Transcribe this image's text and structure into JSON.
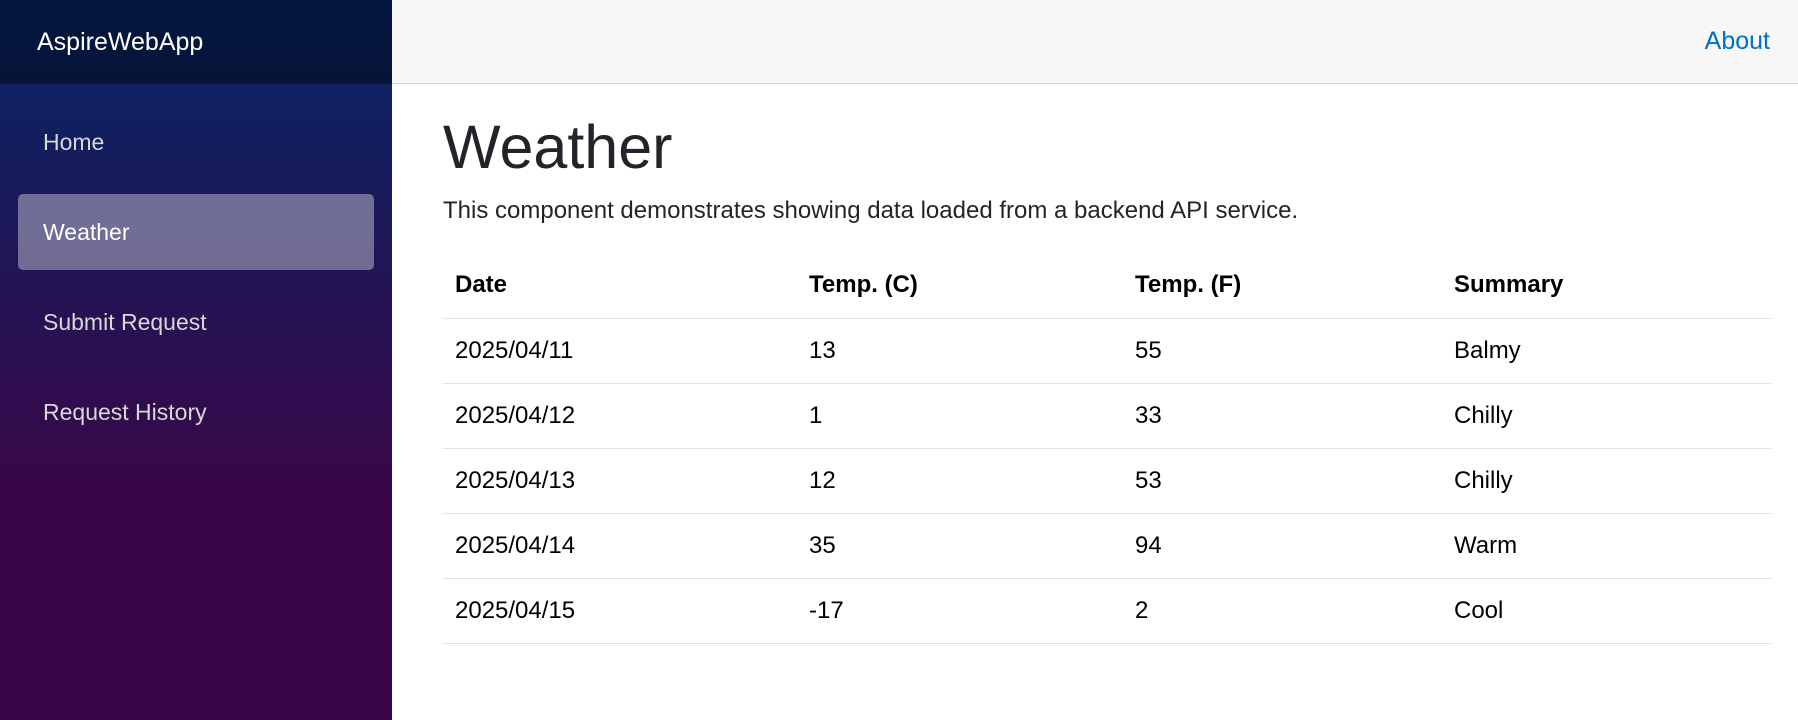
{
  "app": {
    "brand": "AspireWebApp"
  },
  "sidebar": {
    "items": [
      {
        "label": "Home",
        "active": false
      },
      {
        "label": "Weather",
        "active": true
      },
      {
        "label": "Submit Request",
        "active": false
      },
      {
        "label": "Request History",
        "active": false
      }
    ]
  },
  "header": {
    "about_label": "About"
  },
  "page": {
    "title": "Weather",
    "description": "This component demonstrates showing data loaded from a backend API service."
  },
  "table": {
    "columns": [
      "Date",
      "Temp. (C)",
      "Temp. (F)",
      "Summary"
    ],
    "rows": [
      [
        "2025/04/11",
        "13",
        "55",
        "Balmy"
      ],
      [
        "2025/04/12",
        "1",
        "33",
        "Chilly"
      ],
      [
        "2025/04/13",
        "12",
        "53",
        "Chilly"
      ],
      [
        "2025/04/14",
        "35",
        "94",
        "Warm"
      ],
      [
        "2025/04/15",
        "-17",
        "2",
        "Cool"
      ]
    ]
  },
  "colors": {
    "sidebar_gradient_top": "#052767",
    "sidebar_gradient_bottom": "#3a0647",
    "link": "#0071c1",
    "top_row_bg": "#f7f7f7"
  }
}
